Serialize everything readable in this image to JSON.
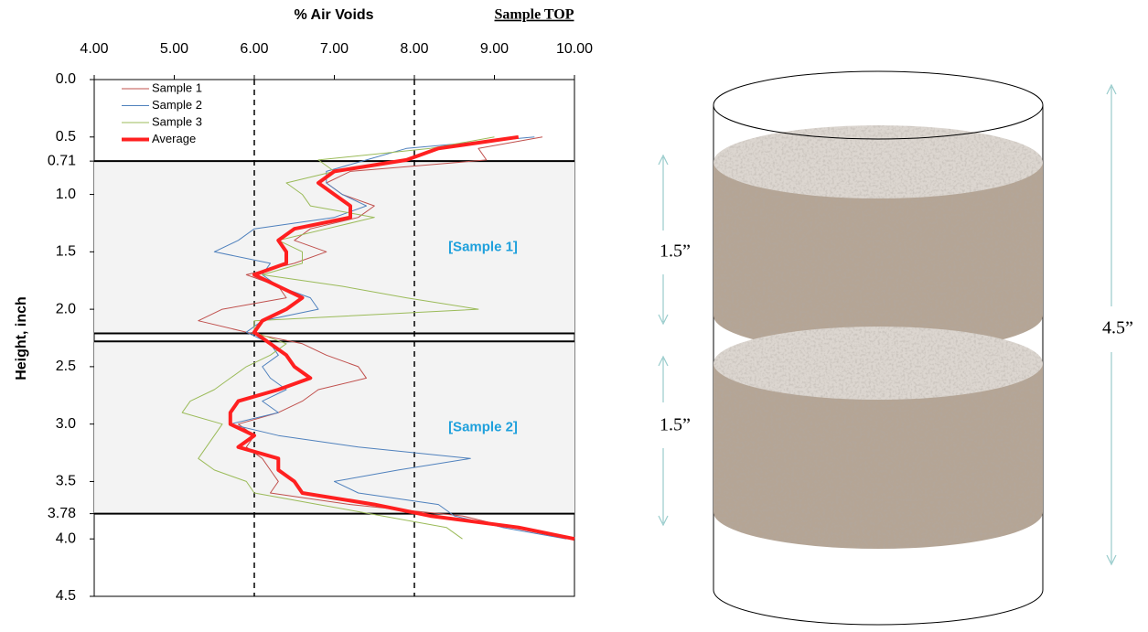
{
  "chart_data": {
    "type": "line",
    "title": "% Air Voids",
    "annotation": "Sample TOP",
    "ylabel": "Height, inch",
    "y": [
      0.5,
      0.6,
      0.7,
      0.8,
      0.9,
      1.0,
      1.1,
      1.2,
      1.3,
      1.4,
      1.5,
      1.6,
      1.7,
      1.8,
      1.9,
      2.0,
      2.1,
      2.2,
      2.3,
      2.4,
      2.5,
      2.6,
      2.7,
      2.8,
      2.9,
      3.0,
      3.1,
      3.2,
      3.3,
      3.4,
      3.5,
      3.6,
      3.7,
      3.8,
      3.9,
      4.0
    ],
    "series": [
      {
        "name": "Sample 1",
        "color": "#c0504d",
        "width": 1,
        "values": [
          9.6,
          8.8,
          8.9,
          7.2,
          6.9,
          7.1,
          7.5,
          7.3,
          6.7,
          6.5,
          6.9,
          6.5,
          5.9,
          6.3,
          6.4,
          5.6,
          5.3,
          5.9,
          6.6,
          6.9,
          7.3,
          7.4,
          6.8,
          6.6,
          6.3,
          5.8,
          6.0,
          5.9,
          6.1,
          6.2,
          6.3,
          6.2,
          7.2,
          8.6,
          9.2,
          10.0
        ]
      },
      {
        "name": "Sample 2",
        "color": "#4f81bd",
        "width": 1,
        "values": [
          9.5,
          7.9,
          7.4,
          6.9,
          6.9,
          7.1,
          7.4,
          7.0,
          6.0,
          5.8,
          5.5,
          6.2,
          6.1,
          6.3,
          6.7,
          6.8,
          6.1,
          5.9,
          6.2,
          6.3,
          6.1,
          6.2,
          6.4,
          6.1,
          6.3,
          5.7,
          6.3,
          7.3,
          8.7,
          7.8,
          7.0,
          7.3,
          8.3,
          8.5,
          9.1,
          9.9
        ]
      },
      {
        "name": "Sample 3",
        "color": "#9bbb59",
        "width": 1,
        "values": [
          9.0,
          8.2,
          6.8,
          7.0,
          6.4,
          6.6,
          6.7,
          7.5,
          6.9,
          6.3,
          6.6,
          6.6,
          6.1,
          7.1,
          7.9,
          8.8,
          6.0,
          6.0,
          6.4,
          6.2,
          5.9,
          5.7,
          5.5,
          5.2,
          5.1,
          5.6,
          5.5,
          5.4,
          5.3,
          5.5,
          5.9,
          6.0,
          6.8,
          7.6,
          8.4,
          8.6
        ]
      },
      {
        "name": "Average",
        "color": "#ff2020",
        "width": 4,
        "values": [
          9.3,
          8.3,
          7.9,
          7.0,
          6.8,
          7.0,
          7.2,
          7.2,
          6.5,
          6.3,
          6.4,
          6.4,
          6.0,
          6.3,
          6.6,
          6.4,
          6.1,
          6.0,
          6.2,
          6.4,
          6.5,
          6.7,
          6.3,
          5.8,
          5.7,
          5.7,
          6.0,
          5.8,
          6.3,
          6.3,
          6.5,
          6.6,
          7.5,
          8.2,
          9.3,
          10.0
        ]
      }
    ],
    "xlim": [
      4,
      10
    ],
    "xticks": [
      {
        "value": 4,
        "label": "4.00"
      },
      {
        "value": 5,
        "label": "5.00"
      },
      {
        "value": 6,
        "label": "6.00"
      },
      {
        "value": 7,
        "label": "7.00"
      },
      {
        "value": 8,
        "label": "8.00"
      },
      {
        "value": 9,
        "label": "9.00"
      },
      {
        "value": 10,
        "label": "10.00"
      }
    ],
    "ylim": [
      0,
      4.5
    ],
    "yticks": [
      {
        "value": 0,
        "label": "0.0"
      },
      0.5,
      0.71,
      {
        "value": 1,
        "label": "1.0"
      },
      1.5,
      {
        "value": 2,
        "label": "2.0"
      },
      2.5,
      {
        "value": 3,
        "label": "3.0"
      },
      3.5,
      3.78,
      {
        "value": 4,
        "label": "4.0"
      },
      4.5
    ],
    "y_inverted": true,
    "reference_lines": [
      6,
      8
    ],
    "sections": [
      {
        "label": "[Sample 1]",
        "from": 0.71,
        "to": 2.21
      },
      {
        "label": "[Sample 2]",
        "from": 2.28,
        "to": 3.78
      }
    ],
    "legend": "top-left"
  },
  "diagram": {
    "labels": [
      "1.5”",
      "1.5”",
      "4.5”"
    ]
  }
}
